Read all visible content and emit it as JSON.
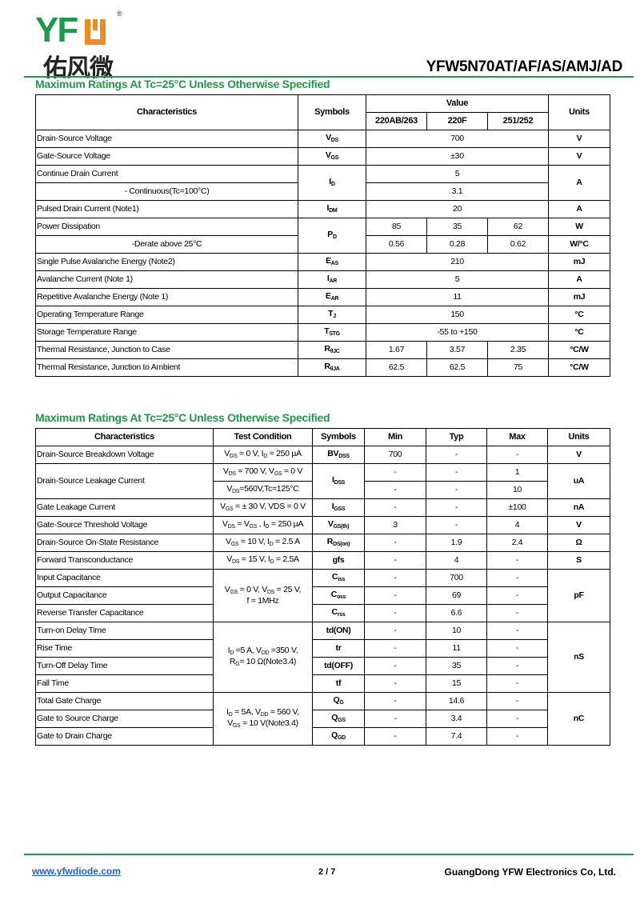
{
  "header": {
    "logo_text": "YFW",
    "logo_cn": "佑风微",
    "logo_reg": "®",
    "model": "YFW5N70AT/AF/AS/AMJ/AD",
    "accent_color": "#1f9a4a",
    "logo_orange": "#f08c1e"
  },
  "table1": {
    "title": "Maximum Ratings At Tc=25°C Unless Otherwise Specified",
    "cols": [
      328,
      85,
      76,
      76,
      76,
      77
    ],
    "rows": [
      [
        {
          "t": "Characteristics",
          "rs": 2,
          "c": "h"
        },
        {
          "t": "Symbols",
          "rs": 2,
          "c": "h"
        },
        {
          "t": "Value",
          "cs": 3,
          "c": "h"
        },
        {
          "t": "Units",
          "rs": 2,
          "c": "h"
        }
      ],
      [
        {
          "t": "220AB/263",
          "c": "h"
        },
        {
          "t": "220F",
          "c": "h"
        },
        {
          "t": "251/252",
          "c": "h"
        }
      ],
      [
        {
          "t": "Drain-Source Voltage",
          "c": "l"
        },
        {
          "t": "V_{DS}",
          "c": "b"
        },
        {
          "t": "700",
          "cs": 3
        },
        {
          "t": "V",
          "c": "b"
        }
      ],
      [
        {
          "t": "Gate-Source Voltage",
          "c": "l"
        },
        {
          "t": "V_{GS}",
          "c": "b"
        },
        {
          "t": "±30",
          "cs": 3
        },
        {
          "t": "V",
          "c": "b"
        }
      ],
      [
        {
          "t": "Continue Drain Current",
          "c": "l"
        },
        {
          "t": "I_{D}",
          "rs": 2,
          "c": "b"
        },
        {
          "t": "5",
          "cs": 3
        },
        {
          "t": "A",
          "rs": 2,
          "c": "b"
        }
      ],
      [
        {
          "t": "- Continuous(Tc=100°C)"
        },
        {
          "t": "3.1",
          "cs": 3
        }
      ],
      [
        {
          "t": "Pulsed Drain Current (Note1)",
          "c": "l"
        },
        {
          "t": "I_{DM}",
          "c": "b"
        },
        {
          "t": "20",
          "cs": 3
        },
        {
          "t": "A",
          "c": "b"
        }
      ],
      [
        {
          "t": "Power Dissipation",
          "c": "l"
        },
        {
          "t": "P_{D}",
          "rs": 2,
          "c": "b"
        },
        {
          "t": "85"
        },
        {
          "t": "35"
        },
        {
          "t": "62"
        },
        {
          "t": "W",
          "c": "b"
        }
      ],
      [
        {
          "t": "-Derate above 25°C"
        },
        {
          "t": "0.56"
        },
        {
          "t": "0.28"
        },
        {
          "t": "0.62"
        },
        {
          "t": "W/°C",
          "c": "b"
        }
      ],
      [
        {
          "t": "Single Pulse Avalanche Energy (Note2)",
          "c": "l"
        },
        {
          "t": "E_{AS}",
          "c": "b"
        },
        {
          "t": "210",
          "cs": 3
        },
        {
          "t": "mJ",
          "c": "b"
        }
      ],
      [
        {
          "t": "Avalanche Current (Note 1)",
          "c": "l"
        },
        {
          "t": "I_{AR}",
          "c": "b"
        },
        {
          "t": "5",
          "cs": 3
        },
        {
          "t": "A",
          "c": "b"
        }
      ],
      [
        {
          "t": "Repetitive Avalanche Energy (Note 1)",
          "c": "l"
        },
        {
          "t": "E_{AR}",
          "c": "b"
        },
        {
          "t": "11",
          "cs": 3
        },
        {
          "t": "mJ",
          "c": "b"
        }
      ],
      [
        {
          "t": "Operating Temperature Range",
          "c": "l"
        },
        {
          "t": "T_{J}",
          "c": "b"
        },
        {
          "t": "150",
          "cs": 3
        },
        {
          "t": "°C",
          "c": "b"
        }
      ],
      [
        {
          "t": "Storage Temperature Range",
          "c": "l"
        },
        {
          "t": "T_{STG}",
          "c": "b"
        },
        {
          "t": "-55 to +150",
          "cs": 3
        },
        {
          "t": "°C",
          "c": "b"
        }
      ],
      [
        {
          "t": "Thermal Resistance, Junction to Case",
          "c": "l"
        },
        {
          "t": "R_{θJC}",
          "c": "b"
        },
        {
          "t": "1.67"
        },
        {
          "t": "3.57"
        },
        {
          "t": "2.35"
        },
        {
          "t": "°C/W",
          "c": "b"
        }
      ],
      [
        {
          "t": "Thermal Resistance, Junction to Ambient",
          "c": "l"
        },
        {
          "t": "R_{θJA}",
          "c": "b"
        },
        {
          "t": "62.5"
        },
        {
          "t": "62.5"
        },
        {
          "t": "75"
        },
        {
          "t": "°C/W",
          "c": "b"
        }
      ]
    ]
  },
  "table2": {
    "title": "Maximum Ratings At Tc=25°C Unless Otherwise Specified",
    "cols": [
      222,
      124,
      65,
      77,
      76,
      76,
      78
    ],
    "rows": [
      [
        {
          "t": "Characteristics",
          "c": "h"
        },
        {
          "t": "Test Condition",
          "c": "h"
        },
        {
          "t": "Symbols",
          "c": "h"
        },
        {
          "t": "Min",
          "c": "h"
        },
        {
          "t": "Typ",
          "c": "h"
        },
        {
          "t": "Max",
          "c": "h"
        },
        {
          "t": "Units",
          "c": "h"
        }
      ],
      [
        {
          "t": "Drain-Source Breakdown Voltage",
          "c": "l"
        },
        {
          "t": "V_{GS} = 0 V, I_{D} = 250 µA"
        },
        {
          "t": "BV_{DSS}",
          "c": "b"
        },
        {
          "t": "700"
        },
        {
          "t": "-"
        },
        {
          "t": "-"
        },
        {
          "t": "V",
          "c": "b"
        }
      ],
      [
        {
          "t": "Drain-Source Leakage Current",
          "c": "l",
          "rs": 2
        },
        {
          "t": "V_{DS} = 700 V, V_{GS} = 0 V"
        },
        {
          "t": "I_{DSS}",
          "c": "b",
          "rs": 2
        },
        {
          "t": "-"
        },
        {
          "t": "-"
        },
        {
          "t": "1"
        },
        {
          "t": "uA",
          "c": "b",
          "rs": 2
        }
      ],
      [
        {
          "t": "V_{DS}=560V,Tc=125°C"
        },
        {
          "t": "-"
        },
        {
          "t": "-"
        },
        {
          "t": "10"
        }
      ],
      [
        {
          "t": "Gate Leakage Current",
          "c": "l"
        },
        {
          "t": "V_{GS} = ± 30 V, VDS = 0 V"
        },
        {
          "t": "I_{GSS}",
          "c": "b"
        },
        {
          "t": "-"
        },
        {
          "t": "-"
        },
        {
          "t": "±100"
        },
        {
          "t": "nA",
          "c": "b"
        }
      ],
      [
        {
          "t": "Gate-Source Threshold Voltage",
          "c": "l"
        },
        {
          "t": "V_{DS} = V_{GS} , I_{D} = 250 µA"
        },
        {
          "t": "V_{GS(th)}",
          "c": "b"
        },
        {
          "t": "3"
        },
        {
          "t": "-"
        },
        {
          "t": "4"
        },
        {
          "t": "V",
          "c": "b"
        }
      ],
      [
        {
          "t": "Drain-Source On-State Resistance",
          "c": "l"
        },
        {
          "t": "V_{GS} = 10 V, I_{D} = 2.5 A"
        },
        {
          "t": "R_{DS(on)}",
          "c": "b"
        },
        {
          "t": "-"
        },
        {
          "t": "1.9"
        },
        {
          "t": "2.4"
        },
        {
          "t": "Ω",
          "c": "b"
        }
      ],
      [
        {
          "t": "Forward Transconductance",
          "c": "l"
        },
        {
          "t": "V_{DS} = 15 V, I_{D} = 2.5A"
        },
        {
          "t": "gfs",
          "c": "b"
        },
        {
          "t": "-"
        },
        {
          "t": "4"
        },
        {
          "t": "-"
        },
        {
          "t": "S",
          "c": "b"
        }
      ],
      [
        {
          "t": "Input Capacitance",
          "c": "l"
        },
        {
          "t": "V_{GS} = 0 V, V_{DS} = 25 V,\nf = 1MHz",
          "rs": 3
        },
        {
          "t": "C_{iss}",
          "c": "b"
        },
        {
          "t": "-"
        },
        {
          "t": "700"
        },
        {
          "t": "-"
        },
        {
          "t": "pF",
          "c": "b",
          "rs": 3
        }
      ],
      [
        {
          "t": "Output Capacitance",
          "c": "l"
        },
        {
          "t": "C_{oss}",
          "c": "b"
        },
        {
          "t": "-"
        },
        {
          "t": "69"
        },
        {
          "t": "-"
        }
      ],
      [
        {
          "t": "Reverse Transfer Capacitance",
          "c": "l"
        },
        {
          "t": "C_{rss}",
          "c": "b"
        },
        {
          "t": "-"
        },
        {
          "t": "6.6"
        },
        {
          "t": "-"
        }
      ],
      [
        {
          "t": "Turn-on Delay Time",
          "c": "l"
        },
        {
          "t": "I_{D} =5 A, V_{DD} =350 V,\nR_{G}= 10 Ω(Note3.4)",
          "rs": 4
        },
        {
          "t": "td(ON)",
          "c": "b"
        },
        {
          "t": "-"
        },
        {
          "t": "10"
        },
        {
          "t": "-"
        },
        {
          "t": "nS",
          "c": "b",
          "rs": 4
        }
      ],
      [
        {
          "t": "Rise Time",
          "c": "l"
        },
        {
          "t": "tr",
          "c": "b"
        },
        {
          "t": "-"
        },
        {
          "t": "11"
        },
        {
          "t": "-"
        }
      ],
      [
        {
          "t": "Turn-Off Delay Time",
          "c": "l"
        },
        {
          "t": "td(OFF)",
          "c": "b"
        },
        {
          "t": "-"
        },
        {
          "t": "35"
        },
        {
          "t": "-"
        }
      ],
      [
        {
          "t": "Fall Time",
          "c": "l"
        },
        {
          "t": "tf",
          "c": "b"
        },
        {
          "t": "-"
        },
        {
          "t": "15"
        },
        {
          "t": "-"
        }
      ],
      [
        {
          "t": "Total Gate Charge",
          "c": "l"
        },
        {
          "t": "I_{D} = 5A, V_{DD} = 560 V,\nV_{GS} = 10 V(Note3.4)",
          "rs": 3
        },
        {
          "t": "Q_{G}",
          "c": "b"
        },
        {
          "t": "-"
        },
        {
          "t": "14.6"
        },
        {
          "t": "-"
        },
        {
          "t": "nC",
          "c": "b",
          "rs": 3
        }
      ],
      [
        {
          "t": "Gate to Source Charge",
          "c": "l"
        },
        {
          "t": "Q_{GS}",
          "c": "b"
        },
        {
          "t": "-"
        },
        {
          "t": "3.4"
        },
        {
          "t": "-"
        }
      ],
      [
        {
          "t": "Gate to Drain Charge",
          "c": "l"
        },
        {
          "t": "Q_{GD}",
          "c": "b"
        },
        {
          "t": "-"
        },
        {
          "t": "7.4"
        },
        {
          "t": "-"
        }
      ]
    ]
  },
  "footer": {
    "website": "www.yfwdiode.com",
    "page": "2 / 7",
    "company": "GuangDong YFW Electronics Co, Ltd."
  }
}
